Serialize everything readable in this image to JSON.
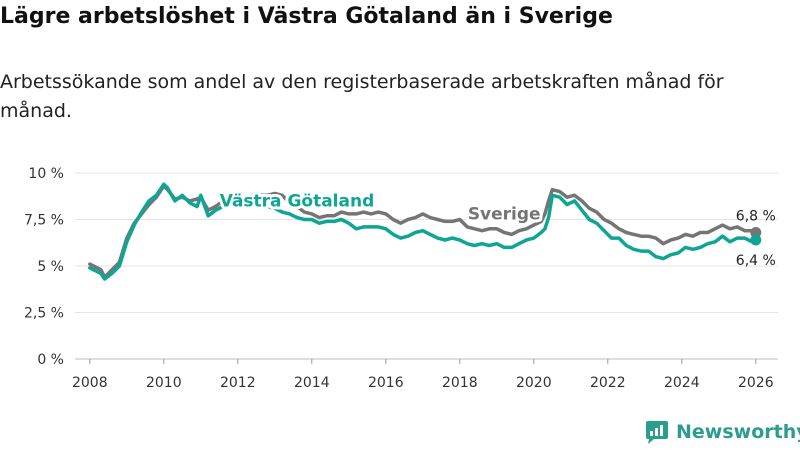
{
  "title": "Lägre arbetslöshet i Västra Götaland än i Sverige",
  "subtitle": "Arbetssökande som andel av den registerbaserade arbetskraften månad för månad.",
  "brand": {
    "name": "Newsworthy",
    "color": "#2a9d8f"
  },
  "chart_data": {
    "type": "line",
    "ylim": [
      0,
      10
    ],
    "xlim": [
      2007.6,
      2026.6
    ],
    "yticks": [
      {
        "value": 0,
        "label": "0 %"
      },
      {
        "value": 2.5,
        "label": "2,5 %"
      },
      {
        "value": 5,
        "label": "5 %"
      },
      {
        "value": 7.5,
        "label": "7,5 %"
      },
      {
        "value": 10,
        "label": "10 %"
      }
    ],
    "xticks": [
      {
        "value": 2008,
        "label": "2008"
      },
      {
        "value": 2010,
        "label": "2010"
      },
      {
        "value": 2012,
        "label": "2012"
      },
      {
        "value": 2014,
        "label": "2014"
      },
      {
        "value": 2016,
        "label": "2016"
      },
      {
        "value": 2018,
        "label": "2018"
      },
      {
        "value": 2020,
        "label": "2020"
      },
      {
        "value": 2022,
        "label": "2022"
      },
      {
        "value": 2024,
        "label": "2024"
      },
      {
        "value": 2026,
        "label": "2026"
      }
    ],
    "grid": true,
    "series": [
      {
        "name": "Sverige",
        "color": "#757575",
        "end_label": "6,8 %",
        "x": [
          2008.0,
          2008.3,
          2008.4,
          2008.6,
          2008.8,
          2009.0,
          2009.2,
          2009.4,
          2009.6,
          2009.8,
          2010.0,
          2010.1,
          2010.3,
          2010.5,
          2010.7,
          2010.9,
          2011.0,
          2011.2,
          2011.4,
          2011.6,
          2011.8,
          2012.0,
          2012.2,
          2012.4,
          2012.6,
          2012.8,
          2013.0,
          2013.2,
          2013.4,
          2013.6,
          2013.8,
          2014.0,
          2014.2,
          2014.4,
          2014.6,
          2014.8,
          2015.0,
          2015.2,
          2015.4,
          2015.6,
          2015.8,
          2016.0,
          2016.2,
          2016.4,
          2016.6,
          2016.8,
          2017.0,
          2017.2,
          2017.4,
          2017.6,
          2017.8,
          2018.0,
          2018.2,
          2018.4,
          2018.6,
          2018.8,
          2019.0,
          2019.2,
          2019.4,
          2019.6,
          2019.8,
          2020.0,
          2020.2,
          2020.3,
          2020.4,
          2020.5,
          2020.7,
          2020.9,
          2021.1,
          2021.3,
          2021.5,
          2021.7,
          2021.9,
          2022.1,
          2022.3,
          2022.5,
          2022.7,
          2022.9,
          2023.1,
          2023.3,
          2023.5,
          2023.7,
          2023.9,
          2024.1,
          2024.3,
          2024.5,
          2024.7,
          2024.9,
          2025.1,
          2025.3,
          2025.5,
          2025.7,
          2025.9,
          2026.0
        ],
        "y": [
          5.1,
          4.8,
          4.4,
          4.8,
          5.2,
          6.5,
          7.3,
          7.8,
          8.3,
          8.7,
          9.3,
          9.1,
          8.6,
          8.7,
          8.5,
          8.6,
          8.7,
          8.0,
          8.2,
          8.5,
          8.6,
          8.6,
          8.7,
          8.8,
          8.8,
          8.8,
          8.9,
          8.8,
          8.4,
          8.2,
          7.9,
          7.8,
          7.6,
          7.7,
          7.7,
          7.9,
          7.8,
          7.8,
          7.9,
          7.8,
          7.9,
          7.8,
          7.5,
          7.3,
          7.5,
          7.6,
          7.8,
          7.6,
          7.5,
          7.4,
          7.4,
          7.5,
          7.1,
          7.0,
          6.9,
          7.0,
          7.0,
          6.8,
          6.7,
          6.9,
          7.0,
          7.2,
          7.4,
          7.8,
          8.5,
          9.1,
          9.0,
          8.7,
          8.8,
          8.5,
          8.1,
          7.9,
          7.5,
          7.3,
          7.0,
          6.8,
          6.7,
          6.6,
          6.6,
          6.5,
          6.2,
          6.4,
          6.5,
          6.7,
          6.6,
          6.8,
          6.8,
          7.0,
          7.2,
          7.0,
          7.1,
          6.9,
          6.9,
          6.8
        ]
      },
      {
        "name": "Västra Götaland",
        "color": "#0fa594",
        "end_label": "6,4 %",
        "x": [
          2008.0,
          2008.3,
          2008.4,
          2008.6,
          2008.8,
          2009.0,
          2009.2,
          2009.4,
          2009.6,
          2009.8,
          2010.0,
          2010.1,
          2010.3,
          2010.5,
          2010.7,
          2010.9,
          2011.0,
          2011.2,
          2011.4,
          2011.6,
          2011.8,
          2012.0,
          2012.2,
          2012.4,
          2012.6,
          2012.8,
          2013.0,
          2013.2,
          2013.4,
          2013.6,
          2013.8,
          2014.0,
          2014.2,
          2014.4,
          2014.6,
          2014.8,
          2015.0,
          2015.2,
          2015.4,
          2015.6,
          2015.8,
          2016.0,
          2016.2,
          2016.4,
          2016.6,
          2016.8,
          2017.0,
          2017.2,
          2017.4,
          2017.6,
          2017.8,
          2018.0,
          2018.2,
          2018.4,
          2018.6,
          2018.8,
          2019.0,
          2019.2,
          2019.4,
          2019.6,
          2019.8,
          2020.0,
          2020.2,
          2020.3,
          2020.4,
          2020.5,
          2020.7,
          2020.9,
          2021.1,
          2021.3,
          2021.5,
          2021.7,
          2021.9,
          2022.1,
          2022.3,
          2022.5,
          2022.7,
          2022.9,
          2023.1,
          2023.3,
          2023.5,
          2023.7,
          2023.9,
          2024.1,
          2024.3,
          2024.5,
          2024.7,
          2024.9,
          2025.1,
          2025.3,
          2025.5,
          2025.7,
          2025.9,
          2026.0
        ],
        "y": [
          4.9,
          4.6,
          4.3,
          4.6,
          5.0,
          6.3,
          7.2,
          7.9,
          8.5,
          8.8,
          9.4,
          9.2,
          8.5,
          8.8,
          8.4,
          8.2,
          8.8,
          7.7,
          8.0,
          8.2,
          8.3,
          8.2,
          8.2,
          8.3,
          8.3,
          8.2,
          8.1,
          7.9,
          7.8,
          7.6,
          7.5,
          7.5,
          7.3,
          7.4,
          7.4,
          7.5,
          7.3,
          7.0,
          7.1,
          7.1,
          7.1,
          7.0,
          6.7,
          6.5,
          6.6,
          6.8,
          6.9,
          6.7,
          6.5,
          6.4,
          6.5,
          6.4,
          6.2,
          6.1,
          6.2,
          6.1,
          6.2,
          6.0,
          6.0,
          6.2,
          6.4,
          6.5,
          6.8,
          7.0,
          7.6,
          8.8,
          8.7,
          8.3,
          8.5,
          8.0,
          7.5,
          7.3,
          6.9,
          6.5,
          6.5,
          6.1,
          5.9,
          5.8,
          5.8,
          5.5,
          5.4,
          5.6,
          5.7,
          6.0,
          5.9,
          6.0,
          6.2,
          6.3,
          6.6,
          6.3,
          6.5,
          6.5,
          6.3,
          6.4
        ]
      }
    ],
    "annotations": [
      {
        "text": "Västra Götaland",
        "series": "Västra Götaland",
        "x": 2013.6,
        "y": 8.2
      },
      {
        "text": "Sverige",
        "series": "Sverige",
        "x": 2019.2,
        "y": 7.5
      }
    ]
  }
}
